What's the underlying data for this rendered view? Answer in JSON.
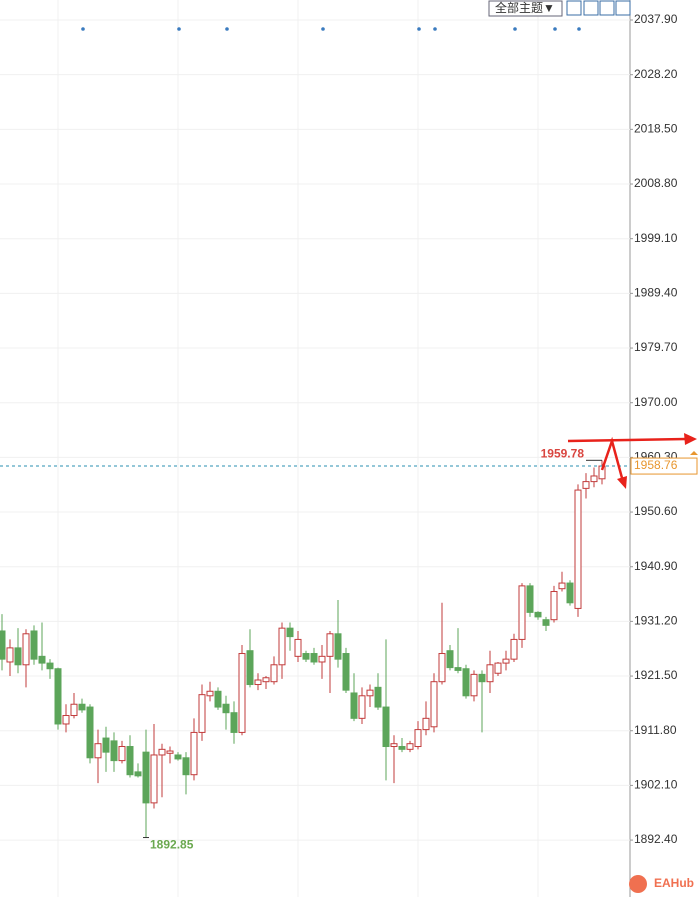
{
  "toolbar": {
    "theme_menu": "全部主题▼"
  },
  "watermark": "EAHub",
  "chart_data": {
    "type": "candlestick",
    "up_color": "#c23b3b",
    "down_color": "#5ca55a",
    "grid": true,
    "ylim": [
      1882.3,
      2041.45
    ],
    "yticks": [
      {
        "value": 2037.9,
        "label": "2037.90"
      },
      {
        "value": 2028.2,
        "label": "2028.20"
      },
      {
        "value": 2018.5,
        "label": "2018.50"
      },
      {
        "value": 2008.8,
        "label": "2008.80"
      },
      {
        "value": 1999.1,
        "label": "1999.10"
      },
      {
        "value": 1989.4,
        "label": "1989.40"
      },
      {
        "value": 1979.7,
        "label": "1979.70"
      },
      {
        "value": 1970.0,
        "label": "1970.00"
      },
      {
        "value": 1960.3,
        "label": "1960.30"
      },
      {
        "value": 1950.6,
        "label": "1950.60"
      },
      {
        "value": 1940.9,
        "label": "1940.90"
      },
      {
        "value": 1931.2,
        "label": "1931.20"
      },
      {
        "value": 1921.5,
        "label": "1921.50"
      },
      {
        "value": 1911.8,
        "label": "1911.80"
      },
      {
        "value": 1902.1,
        "label": "1902.10"
      },
      {
        "value": 1892.4,
        "label": "1892.40"
      }
    ],
    "open": [
      1929.5,
      1924,
      1926.5,
      1923.5,
      1929.5,
      1925,
      1923.8,
      1922.8,
      1913,
      1914.5,
      1916.5,
      1916,
      1907,
      1910.5,
      1910,
      1906.5,
      1909,
      1904.5,
      1908,
      1899,
      1907.5,
      1907.8,
      1907.5,
      1907,
      1904,
      1911.5,
      1918,
      1918.8,
      1916.5,
      1915,
      1911.5,
      1926,
      1920,
      1920.5,
      1920.5,
      1923.5,
      1930,
      1925,
      1925.5,
      1925.5,
      1924,
      1925,
      1929,
      1925.5,
      1918.5,
      1914,
      1918,
      1919.5,
      1916,
      1909,
      1909,
      1908.5,
      1909,
      1912,
      1912.5,
      1920.5,
      1926,
      1923,
      1922.8,
      1918,
      1921.8,
      1920.5,
      1922,
      1923.8,
      1924.5,
      1928,
      1937.5,
      1932.8,
      1931.5,
      1931.5,
      1937,
      1938,
      1933.5,
      1954.8,
      1956,
      1956.5
    ],
    "high": [
      1932.5,
      1928,
      1930,
      1929.8,
      1930.5,
      1931,
      1924.5,
      1923,
      1916.5,
      1918.5,
      1917.5,
      1916.5,
      1912,
      1912.5,
      1911.5,
      1910,
      1911,
      1906,
      1912,
      1913,
      1909.5,
      1909,
      1908,
      1908,
      1914,
      1920,
      1920.5,
      1919.5,
      1918,
      1917,
      1927,
      1929.8,
      1922,
      1921.5,
      1925,
      1931,
      1931,
      1929.5,
      1926,
      1926.5,
      1927,
      1929.5,
      1935,
      1926.5,
      1922,
      1919.5,
      1920,
      1922,
      1928,
      1911,
      1910.5,
      1910,
      1913.5,
      1917,
      1922,
      1934.5,
      1927,
      1930,
      1923.5,
      1922.5,
      1922.5,
      1926,
      1924,
      1926,
      1929,
      1938,
      1938,
      1933,
      1932,
      1937.5,
      1940,
      1938.5,
      1955.5,
      1957.5,
      1958.5,
      1959.78
    ],
    "low": [
      1922.5,
      1921.5,
      1922,
      1919.5,
      1923.5,
      1922.5,
      1921,
      1912,
      1911.5,
      1914,
      1915,
      1906,
      1902.5,
      1904.5,
      1904.5,
      1906,
      1903.5,
      1903.5,
      1892.85,
      1898,
      1900,
      1906,
      1906.5,
      1900.5,
      1903,
      1910,
      1917,
      1915.5,
      1912,
      1909.5,
      1911,
      1919.5,
      1919,
      1919.2,
      1920,
      1921,
      1926,
      1924,
      1924,
      1923.5,
      1921,
      1918.5,
      1923,
      1918.5,
      1913.5,
      1913,
      1916,
      1915.5,
      1903,
      1902.5,
      1908,
      1908,
      1908.5,
      1911,
      1911.5,
      1920,
      1922.5,
      1922,
      1917.5,
      1917,
      1911.5,
      1918.5,
      1921.5,
      1922.5,
      1924,
      1926.5,
      1932,
      1931.5,
      1929.5,
      1931,
      1936.5,
      1934,
      1932,
      1953,
      1955,
      1955.5
    ],
    "close": [
      1924.5,
      1926.5,
      1923.5,
      1929,
      1924.5,
      1923.8,
      1922.8,
      1913,
      1914.5,
      1916.5,
      1915.5,
      1907,
      1909.5,
      1908,
      1906.5,
      1909,
      1904,
      1903.8,
      1899,
      1907.5,
      1908.5,
      1908.2,
      1906.8,
      1904,
      1911.5,
      1918.2,
      1918.8,
      1916,
      1915,
      1911.5,
      1925.5,
      1920,
      1920.8,
      1921.2,
      1923.5,
      1930,
      1928.5,
      1928,
      1924.5,
      1924,
      1925,
      1929,
      1924.5,
      1919,
      1914,
      1918,
      1919,
      1916,
      1909,
      1909.5,
      1908.5,
      1909.5,
      1912,
      1914,
      1920.5,
      1925.5,
      1923,
      1922.5,
      1918,
      1921.8,
      1920.5,
      1923.5,
      1923.8,
      1924.5,
      1928,
      1937.5,
      1932.8,
      1932,
      1930.5,
      1936.5,
      1938,
      1934.5,
      1954.5,
      1956,
      1957,
      1958.76
    ],
    "high_label": 1959.78,
    "low_label": 1892.85,
    "last_price": 1958.76
  }
}
